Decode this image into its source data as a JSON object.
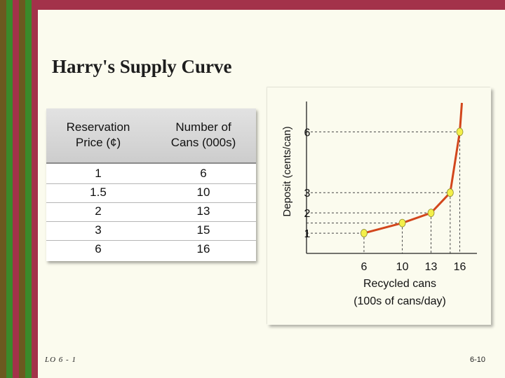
{
  "slide": {
    "title": "Harry's Supply Curve",
    "footer_left": "LO 6 - 1",
    "footer_right": "6-10"
  },
  "colors": {
    "background": "#fbfbee",
    "top_bar": "#a3324a",
    "stripe_olive": "#6b5a1f",
    "stripe_green": "#3a8a2a",
    "stripe_red": "#a3324a",
    "curve": "#d2461c",
    "point_fill": "#f3ef4a"
  },
  "table": {
    "headers": [
      "Reservation Price (¢)",
      "Number of Cans (000s)"
    ],
    "header_lines": [
      [
        "Reservation",
        "Price (¢)"
      ],
      [
        "Number of",
        "Cans (000s)"
      ]
    ],
    "rows": [
      [
        "1",
        "6"
      ],
      [
        "1.5",
        "10"
      ],
      [
        "2",
        "13"
      ],
      [
        "3",
        "15"
      ],
      [
        "6",
        "16"
      ]
    ]
  },
  "chart_data": {
    "type": "line",
    "title": "",
    "xlabel": "Recycled cans (100s of cans/day)",
    "xlabel_lines": [
      "Recycled cans",
      "(100s of cans/day)"
    ],
    "ylabel": "Deposit (cents/can)",
    "x": [
      6,
      10,
      13,
      15,
      16
    ],
    "y": [
      1,
      1.5,
      2,
      3,
      6
    ],
    "x_tick_labels": [
      "6",
      "10",
      "13",
      "16"
    ],
    "x_ticks": [
      6,
      10,
      13,
      16
    ],
    "y_tick_labels": [
      "1",
      "2",
      "3",
      "6"
    ],
    "y_ticks": [
      1,
      2,
      3,
      6
    ],
    "xlim": [
      0,
      17.5
    ],
    "ylim": [
      0,
      7.5
    ],
    "grid": false,
    "dashed_guides": true,
    "point_marker": "yellow-circle"
  }
}
